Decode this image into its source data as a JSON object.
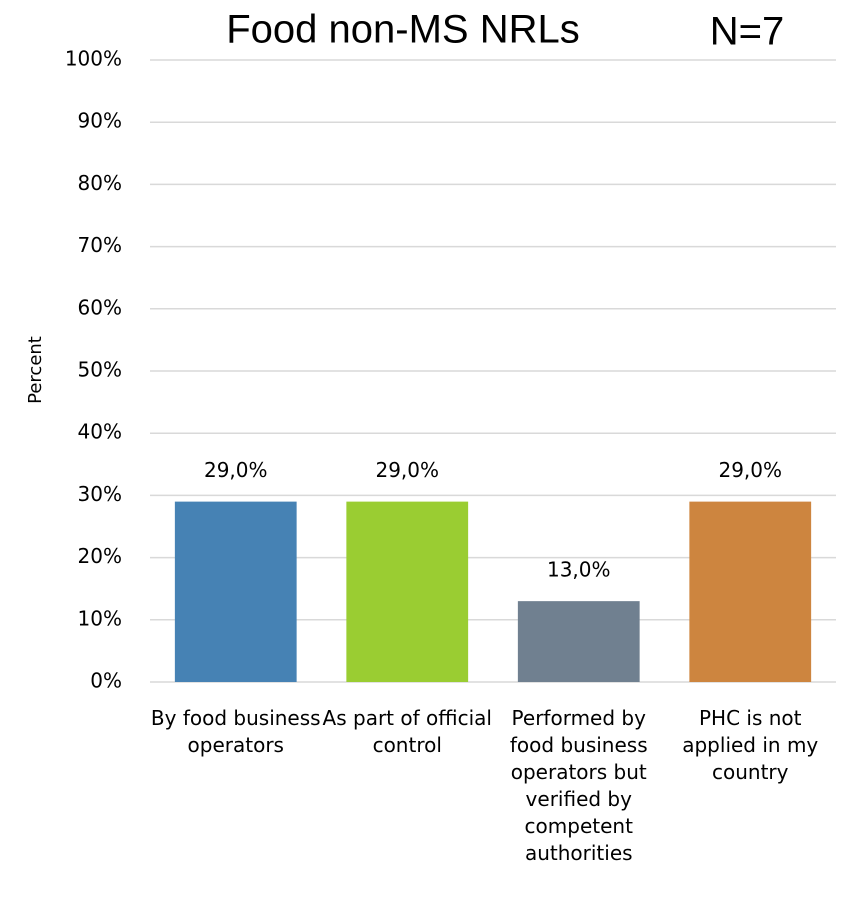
{
  "chart_data": {
    "type": "bar",
    "title": "Food non-MS NRLs",
    "annotation": "N=7",
    "ylabel": "Percent",
    "categories": [
      "By food business operators",
      "As part of official control",
      "Performed by food business operators but verified by competent authorities",
      "PHC is not applied in my country"
    ],
    "values": [
      29,
      29,
      13,
      29
    ],
    "value_labels": [
      "29,0%",
      "29,0%",
      "13,0%",
      "29,0%"
    ],
    "colors": [
      "#4682b4",
      "#9acd32",
      "#708090",
      "#cd853f"
    ],
    "ylim": [
      0,
      100
    ],
    "yticks": [
      {
        "value": 0,
        "label": "0%"
      },
      {
        "value": 10,
        "label": "10%"
      },
      {
        "value": 20,
        "label": "20%"
      },
      {
        "value": 30,
        "label": "30%"
      },
      {
        "value": 40,
        "label": "40%"
      },
      {
        "value": 50,
        "label": "50%"
      },
      {
        "value": 60,
        "label": "60%"
      },
      {
        "value": 70,
        "label": "70%"
      },
      {
        "value": 80,
        "label": "80%"
      },
      {
        "value": 90,
        "label": "90%"
      },
      {
        "value": 100,
        "label": "100%"
      }
    ],
    "grid": true
  }
}
